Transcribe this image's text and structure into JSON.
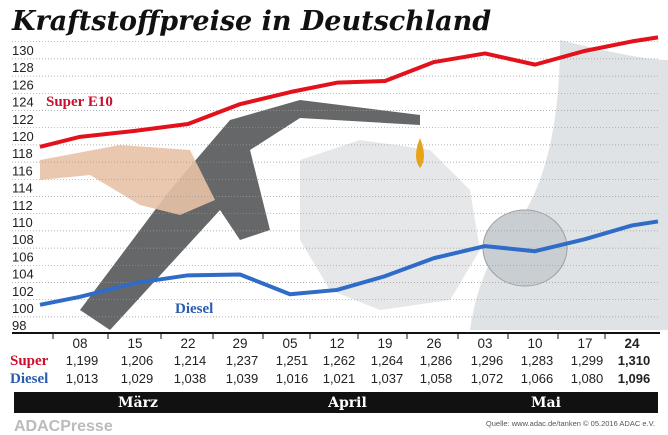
{
  "chart_data": {
    "type": "line",
    "title": "Kraftstoffpreise in Deutschland",
    "ylim": [
      98,
      130
    ],
    "yticks": [
      98,
      100,
      102,
      104,
      106,
      108,
      110,
      112,
      114,
      116,
      118,
      120,
      122,
      124,
      126,
      128,
      130
    ],
    "grid": true,
    "categories": [
      "08",
      "15",
      "22",
      "29",
      "05",
      "12",
      "19",
      "26",
      "03",
      "10",
      "17",
      "24"
    ],
    "months": [
      {
        "label": "März",
        "span": [
          0,
          3
        ]
      },
      {
        "label": "April",
        "span": [
          4,
          7
        ]
      },
      {
        "label": "Mai",
        "span": [
          8,
          11
        ]
      }
    ],
    "series": [
      {
        "name": "Super E10",
        "table_label": "Super",
        "color": "#e3111b",
        "label_color": "#c8102e",
        "values": [
          119.9,
          120.6,
          121.4,
          123.7,
          125.1,
          126.2,
          126.4,
          128.6,
          129.6,
          128.3,
          129.9,
          131.0
        ],
        "table_values": [
          "1,199",
          "1,206",
          "1,214",
          "1,237",
          "1,251",
          "1,262",
          "1,264",
          "1,286",
          "1,296",
          "1,283",
          "1,299",
          "1,310"
        ]
      },
      {
        "name": "Diesel",
        "table_label": "Diesel",
        "color": "#2f6cc8",
        "label_color": "#2a5db0",
        "values": [
          101.3,
          102.9,
          103.8,
          103.9,
          101.6,
          102.1,
          103.7,
          105.8,
          107.2,
          106.6,
          108.0,
          109.6
        ],
        "table_values": [
          "1,013",
          "1,029",
          "1,038",
          "1,039",
          "1,016",
          "1,021",
          "1,037",
          "1,058",
          "1,072",
          "1,066",
          "1,080",
          "1,096"
        ]
      }
    ],
    "source": "Quelle: www.adac.de/tanken  © 05.2016  ADAC e.V.",
    "watermark": "ADACPresse"
  }
}
